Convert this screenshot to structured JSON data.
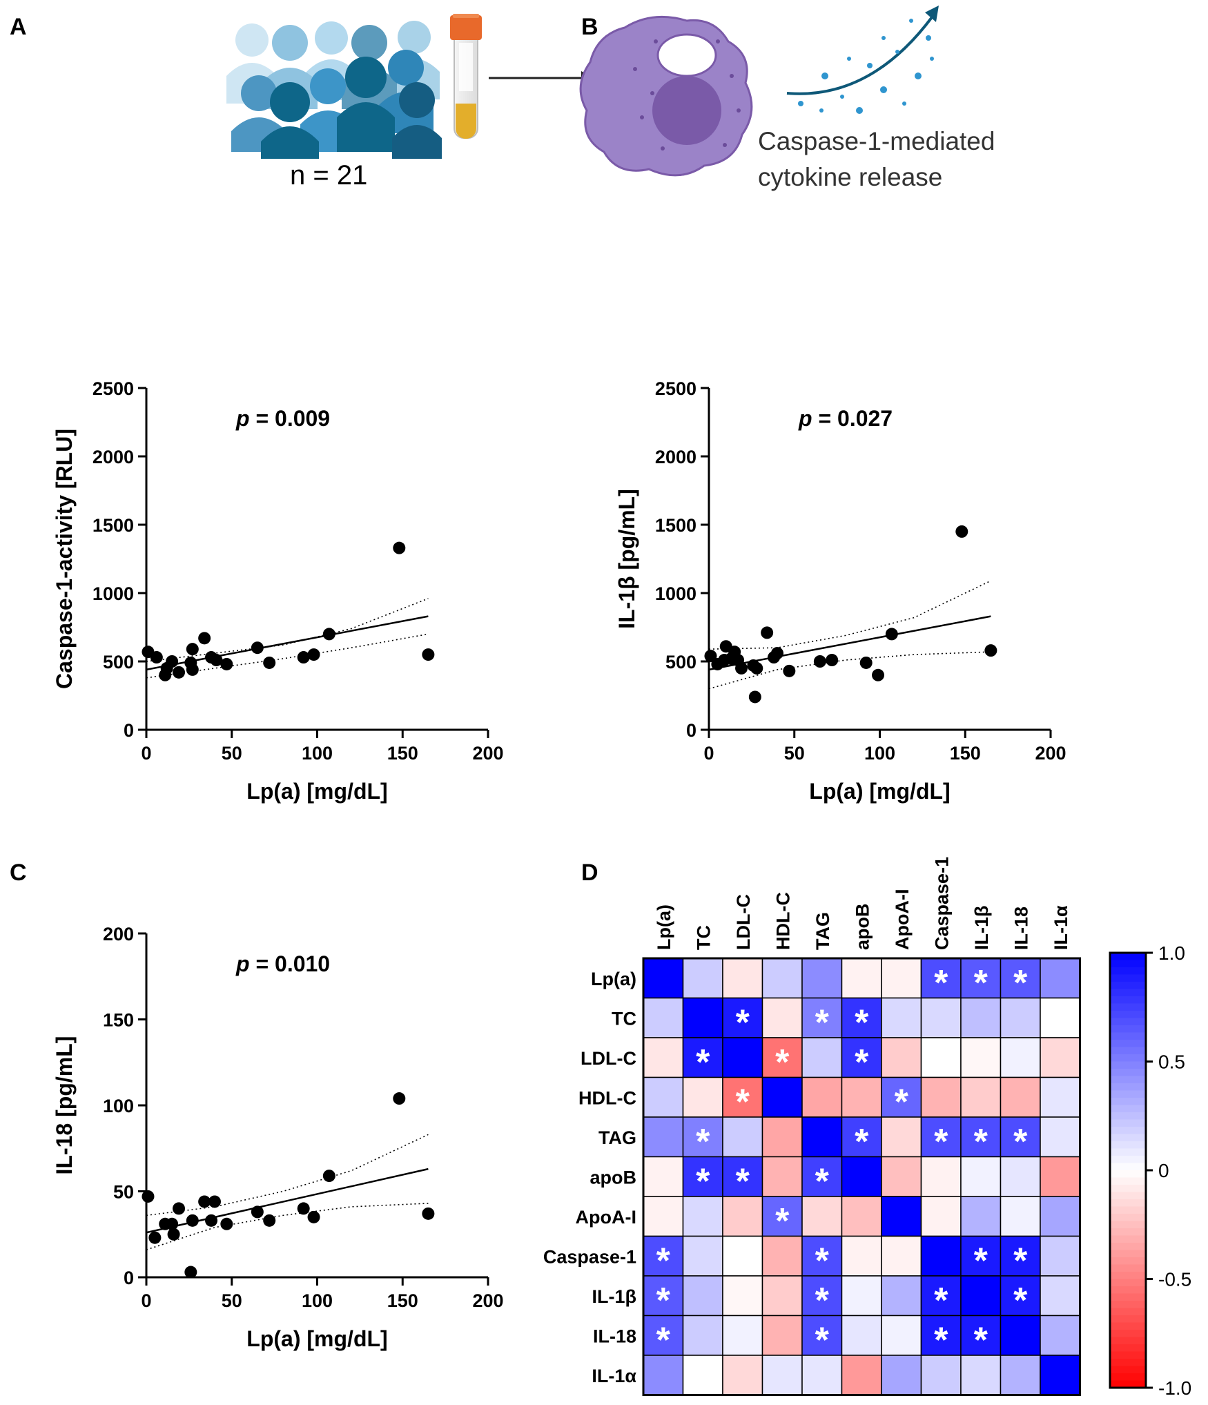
{
  "panels": {
    "a": "A",
    "b": "B",
    "c": "C",
    "d": "D"
  },
  "panel_a": {
    "n_label": "n = 21"
  },
  "panel_b": {
    "caption_line1": "Caspase-1-mediated",
    "caption_line2": "cytokine release"
  },
  "chart_data": [
    {
      "type": "scatter",
      "id": "caspase",
      "title": "",
      "p_prefix": "p",
      "p_value": "= 0.009",
      "xlabel": "Lp(a) [mg/dL]",
      "ylabel": "Caspase-1-activity [RLU]",
      "xlim": [
        0,
        200
      ],
      "ylim": [
        0,
        2500
      ],
      "xticks": [
        0,
        50,
        100,
        150,
        200
      ],
      "yticks": [
        0,
        500,
        1000,
        1500,
        2000,
        2500
      ],
      "points": [
        [
          1,
          570
        ],
        [
          6,
          530
        ],
        [
          11,
          400
        ],
        [
          12,
          450
        ],
        [
          15,
          500
        ],
        [
          19,
          420
        ],
        [
          26,
          490
        ],
        [
          27,
          440
        ],
        [
          27,
          590
        ],
        [
          34,
          670
        ],
        [
          38,
          530
        ],
        [
          41,
          510
        ],
        [
          47,
          480
        ],
        [
          65,
          600
        ],
        [
          72,
          490
        ],
        [
          92,
          530
        ],
        [
          98,
          550
        ],
        [
          107,
          700
        ],
        [
          148,
          1330
        ],
        [
          165,
          550
        ]
      ],
      "fit": {
        "x": [
          0,
          165
        ],
        "y": [
          440,
          830
        ]
      },
      "ci_upper": [
        [
          0,
          500
        ],
        [
          40,
          560
        ],
        [
          80,
          620
        ],
        [
          120,
          740
        ],
        [
          165,
          960
        ]
      ],
      "ci_lower": [
        [
          0,
          380
        ],
        [
          40,
          450
        ],
        [
          80,
          520
        ],
        [
          120,
          600
        ],
        [
          165,
          700
        ]
      ]
    },
    {
      "type": "scatter",
      "id": "il1b",
      "title": "",
      "p_prefix": "p",
      "p_value": "= 0.027",
      "xlabel": "Lp(a) [mg/dL]",
      "ylabel": "IL-1β [pg/mL]",
      "xlim": [
        0,
        200
      ],
      "ylim": [
        0,
        2500
      ],
      "xticks": [
        0,
        50,
        100,
        150,
        200
      ],
      "yticks": [
        0,
        500,
        1000,
        1500,
        2000,
        2500
      ],
      "points": [
        [
          1,
          540
        ],
        [
          5,
          480
        ],
        [
          9,
          510
        ],
        [
          10,
          610
        ],
        [
          13,
          520
        ],
        [
          15,
          570
        ],
        [
          17,
          510
        ],
        [
          19,
          450
        ],
        [
          26,
          470
        ],
        [
          27,
          240
        ],
        [
          28,
          450
        ],
        [
          34,
          710
        ],
        [
          38,
          530
        ],
        [
          40,
          560
        ],
        [
          47,
          430
        ],
        [
          65,
          500
        ],
        [
          72,
          510
        ],
        [
          92,
          490
        ],
        [
          99,
          400
        ],
        [
          107,
          700
        ],
        [
          148,
          1450
        ],
        [
          165,
          580
        ]
      ],
      "fit": {
        "x": [
          0,
          165
        ],
        "y": [
          440,
          830
        ]
      },
      "ci_upper": [
        [
          0,
          590
        ],
        [
          40,
          600
        ],
        [
          80,
          690
        ],
        [
          120,
          820
        ],
        [
          165,
          1090
        ]
      ],
      "ci_lower": [
        [
          0,
          300
        ],
        [
          40,
          440
        ],
        [
          80,
          510
        ],
        [
          120,
          550
        ],
        [
          165,
          570
        ]
      ]
    },
    {
      "type": "scatter",
      "id": "il18",
      "title": "",
      "p_prefix": "p",
      "p_value": "= 0.010",
      "xlabel": "Lp(a) [mg/dL]",
      "ylabel": "IL-18 [pg/mL]",
      "xlim": [
        0,
        200
      ],
      "ylim": [
        0,
        200
      ],
      "xticks": [
        0,
        50,
        100,
        150,
        200
      ],
      "yticks": [
        0,
        50,
        100,
        150,
        200
      ],
      "points": [
        [
          1,
          47
        ],
        [
          5,
          23
        ],
        [
          11,
          31
        ],
        [
          15,
          31
        ],
        [
          16,
          25
        ],
        [
          19,
          40
        ],
        [
          26,
          3
        ],
        [
          27,
          33
        ],
        [
          34,
          44
        ],
        [
          38,
          33
        ],
        [
          40,
          44
        ],
        [
          47,
          31
        ],
        [
          65,
          38
        ],
        [
          72,
          33
        ],
        [
          92,
          40
        ],
        [
          98,
          35
        ],
        [
          107,
          59
        ],
        [
          148,
          104
        ],
        [
          165,
          37
        ]
      ],
      "fit": {
        "x": [
          0,
          165
        ],
        "y": [
          26,
          63
        ]
      },
      "ci_upper": [
        [
          0,
          36
        ],
        [
          40,
          41
        ],
        [
          80,
          50
        ],
        [
          120,
          62
        ],
        [
          165,
          83
        ]
      ],
      "ci_lower": [
        [
          0,
          16
        ],
        [
          40,
          29
        ],
        [
          80,
          36
        ],
        [
          120,
          41
        ],
        [
          165,
          43
        ]
      ]
    },
    {
      "type": "heatmap",
      "id": "correlation",
      "labels": [
        "Lp(a)",
        "TC",
        "LDL-C",
        "HDL-C",
        "TAG",
        "apoB",
        "ApoA-I",
        "Caspase-1",
        "IL-1β",
        "IL-18",
        "IL-1α"
      ],
      "matrix": [
        [
          1.0,
          0.2,
          -0.1,
          0.2,
          0.45,
          -0.05,
          -0.05,
          0.7,
          0.65,
          0.65,
          0.45
        ],
        [
          0.2,
          1.0,
          0.9,
          -0.1,
          0.5,
          0.8,
          0.15,
          0.15,
          0.25,
          0.2,
          0.0
        ],
        [
          -0.1,
          0.9,
          1.0,
          -0.55,
          0.2,
          0.8,
          -0.2,
          0.0,
          -0.03,
          0.05,
          -0.15
        ],
        [
          0.2,
          -0.1,
          -0.55,
          1.0,
          -0.35,
          -0.3,
          0.6,
          -0.3,
          -0.2,
          -0.3,
          0.1
        ],
        [
          0.45,
          0.5,
          0.2,
          -0.35,
          1.0,
          0.75,
          -0.15,
          0.7,
          0.7,
          0.7,
          0.1
        ],
        [
          -0.05,
          0.8,
          0.8,
          -0.3,
          0.75,
          1.0,
          -0.25,
          -0.05,
          0.05,
          0.1,
          -0.4
        ],
        [
          -0.05,
          0.15,
          -0.2,
          0.6,
          -0.15,
          -0.25,
          1.0,
          -0.05,
          0.3,
          0.05,
          0.35
        ],
        [
          0.7,
          0.15,
          0.0,
          -0.3,
          0.7,
          -0.05,
          -0.05,
          1.0,
          0.9,
          0.9,
          0.2
        ],
        [
          0.65,
          0.25,
          -0.03,
          -0.2,
          0.7,
          0.05,
          0.3,
          0.9,
          1.0,
          0.9,
          0.15
        ],
        [
          0.65,
          0.2,
          0.05,
          -0.3,
          0.7,
          0.1,
          0.05,
          0.9,
          0.9,
          1.0,
          0.3
        ],
        [
          0.45,
          0.0,
          -0.15,
          0.1,
          0.1,
          -0.4,
          0.35,
          0.2,
          0.15,
          0.3,
          1.0
        ]
      ],
      "significance_marker": "*",
      "significant": [
        [
          0,
          7
        ],
        [
          0,
          8
        ],
        [
          0,
          9
        ],
        [
          1,
          2
        ],
        [
          1,
          4
        ],
        [
          1,
          5
        ],
        [
          2,
          1
        ],
        [
          2,
          3
        ],
        [
          2,
          5
        ],
        [
          3,
          2
        ],
        [
          3,
          6
        ],
        [
          4,
          1
        ],
        [
          4,
          5
        ],
        [
          4,
          7
        ],
        [
          4,
          8
        ],
        [
          4,
          9
        ],
        [
          5,
          1
        ],
        [
          5,
          2
        ],
        [
          5,
          4
        ],
        [
          6,
          3
        ],
        [
          7,
          0
        ],
        [
          7,
          4
        ],
        [
          7,
          8
        ],
        [
          7,
          9
        ],
        [
          8,
          0
        ],
        [
          8,
          4
        ],
        [
          8,
          7
        ],
        [
          8,
          9
        ],
        [
          9,
          0
        ],
        [
          9,
          4
        ],
        [
          9,
          7
        ],
        [
          9,
          8
        ]
      ],
      "colorscale": {
        "min": -1.0,
        "max": 1.0,
        "low": "#ff0000",
        "mid": "#ffffff",
        "high": "#0000ff"
      },
      "colorbar_ticks": [
        "1.0",
        "0.5",
        "0",
        "-0.5",
        "-1.0"
      ]
    }
  ],
  "colors": {
    "accent_dark": "#0e6689",
    "accent_mid": "#3d95c8",
    "accent_light": "#a9d2e8",
    "cell_purple": "#9b83c8",
    "nucleus": "#7a5aa8",
    "tube_cap": "#e8692b",
    "serum": "#e3ae2b"
  }
}
